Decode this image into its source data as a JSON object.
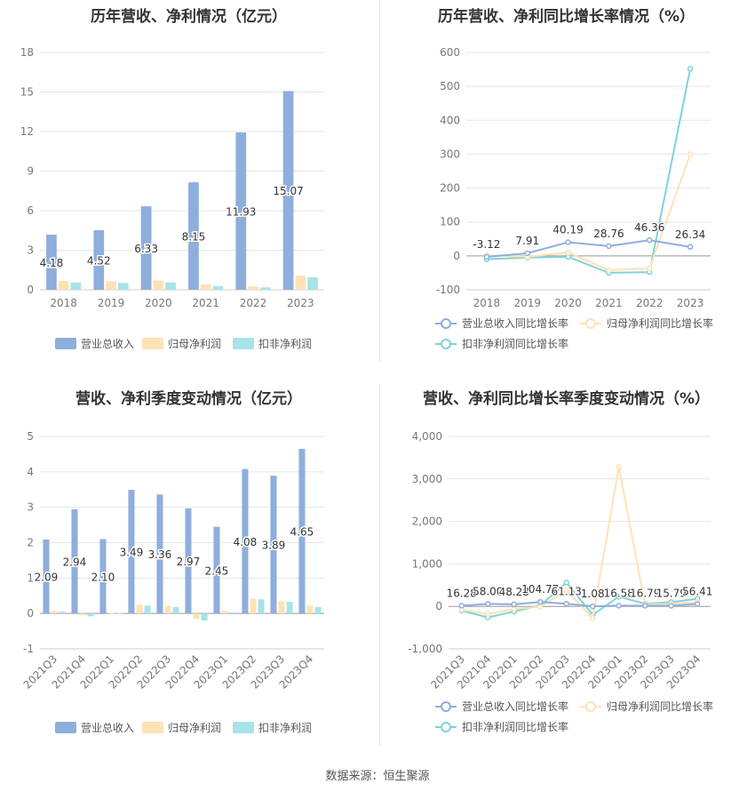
{
  "source": "数据来源：恒生聚源",
  "chart_data": [
    {
      "type": "bar",
      "title": "历年营收、净利情况（亿元）",
      "categories": [
        "2018",
        "2019",
        "2020",
        "2021",
        "2022",
        "2023"
      ],
      "ylim": [
        0,
        18
      ],
      "yticks": [
        0,
        3,
        6,
        9,
        12,
        15,
        18
      ],
      "legend_position": "bottom",
      "series": [
        {
          "name": "营业总收入",
          "color": "#8eaedc",
          "values": [
            4.18,
            4.52,
            6.33,
            8.15,
            11.93,
            15.07
          ],
          "labels": [
            "4.18",
            "4.52",
            "6.33",
            "8.15",
            "11.93",
            "15.07"
          ]
        },
        {
          "name": "归母净利润",
          "color": "#fde2b5",
          "values": [
            0.68,
            0.66,
            0.7,
            0.42,
            0.27,
            1.07
          ]
        },
        {
          "name": "扣非净利润",
          "color": "#a7e3e8",
          "values": [
            0.55,
            0.52,
            0.55,
            0.28,
            0.18,
            0.95
          ]
        }
      ]
    },
    {
      "type": "line",
      "title": "历年营收、净利同比增长率情况（%）",
      "categories": [
        "2018",
        "2019",
        "2020",
        "2021",
        "2022",
        "2023"
      ],
      "ylim": [
        -100,
        600
      ],
      "yticks": [
        -100,
        0,
        100,
        200,
        300,
        400,
        500,
        600
      ],
      "legend_position": "bottom",
      "series": [
        {
          "name": "营业总收入同比增长率",
          "color": "#8eaedc",
          "values": [
            -3.12,
            7.91,
            40.19,
            28.76,
            46.36,
            26.34
          ],
          "labels": [
            "-3.12",
            "7.91",
            "40.19",
            "28.76",
            "46.36",
            "26.34"
          ]
        },
        {
          "name": "归母净利润同比增长率",
          "color": "#fde2b5",
          "values": [
            2,
            -3,
            10,
            -42,
            -37,
            300
          ]
        },
        {
          "name": "扣非净利润同比增长率",
          "color": "#7ed3d8",
          "values": [
            -10,
            -5,
            -3,
            -50,
            -48,
            552
          ]
        }
      ]
    },
    {
      "type": "bar",
      "title": "营收、净利季度变动情况（亿元）",
      "categories": [
        "2021Q3",
        "2021Q4",
        "2022Q1",
        "2022Q2",
        "2022Q3",
        "2022Q4",
        "2023Q1",
        "2023Q2",
        "2023Q3",
        "2023Q4"
      ],
      "ylim": [
        -1,
        5
      ],
      "yticks": [
        -1,
        0,
        1,
        2,
        3,
        4,
        5
      ],
      "legend_position": "bottom",
      "series": [
        {
          "name": "营业总收入",
          "color": "#8eaedc",
          "values": [
            2.09,
            2.94,
            2.1,
            3.49,
            3.36,
            2.97,
            2.45,
            4.08,
            3.89,
            4.65
          ],
          "labels": [
            "2.09",
            "2.94",
            "2.10",
            "3.49",
            "3.36",
            "2.97",
            "2.45",
            "4.08",
            "3.89",
            "4.65"
          ]
        },
        {
          "name": "归母净利润",
          "color": "#fde2b5",
          "values": [
            0.07,
            -0.05,
            0.02,
            0.25,
            0.22,
            -0.15,
            0.07,
            0.42,
            0.35,
            0.22
          ]
        },
        {
          "name": "扣非净利润",
          "color": "#a7e3e8",
          "values": [
            0.05,
            -0.08,
            0.01,
            0.22,
            0.18,
            -0.2,
            0.03,
            0.4,
            0.33,
            0.18
          ]
        }
      ]
    },
    {
      "type": "line",
      "title": "营收、净利同比增长率季度变动情况（%）",
      "categories": [
        "2021Q3",
        "2021Q4",
        "2022Q1",
        "2022Q2",
        "2022Q3",
        "2022Q4",
        "2023Q1",
        "2023Q2",
        "2023Q3",
        "2023Q4"
      ],
      "ylim": [
        -1000,
        4000
      ],
      "yticks": [
        -1000,
        0,
        1000,
        2000,
        3000,
        4000
      ],
      "ytick_labels": [
        "-1,000",
        "0",
        "1,000",
        "2,000",
        "3,000",
        "4,000"
      ],
      "legend_position": "bottom",
      "series": [
        {
          "name": "营业总收入同比增长率",
          "color": "#8eaedc",
          "values": [
            16.28,
            58.0,
            48.28,
            104.77,
            61.13,
            1.08,
            16.58,
            16.79,
            15.79,
            56.41
          ],
          "labels": [
            "16.28",
            "58.00",
            "48.28",
            "104.77",
            "61.13",
            "1.08",
            "16.58",
            "16.79",
            "15.79",
            "56.41"
          ]
        },
        {
          "name": "归母净利润同比增长率",
          "color": "#fde2b5",
          "values": [
            -80,
            -180,
            -60,
            -10,
            380,
            -280,
            3280,
            40,
            60,
            100
          ]
        },
        {
          "name": "扣非净利润同比增长率",
          "color": "#7ed3d8",
          "values": [
            -100,
            -260,
            -120,
            20,
            560,
            -200,
            230,
            60,
            100,
            180
          ]
        }
      ]
    }
  ]
}
